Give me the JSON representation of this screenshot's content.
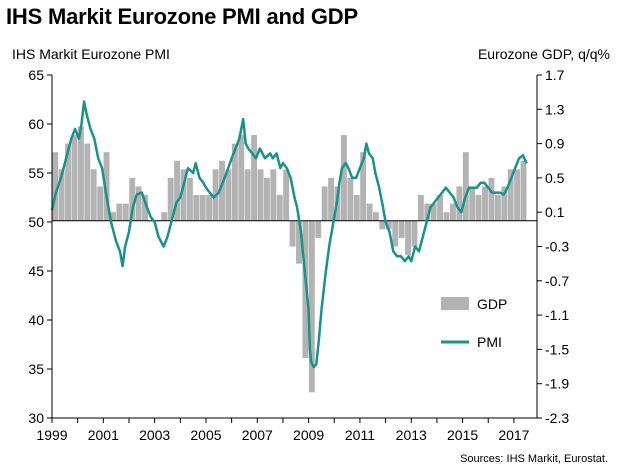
{
  "title": "IHS Markit Eurozone PMI and GDP",
  "source": "Sources: IHS Markit, Eurostat.",
  "colors": {
    "gdp": "#b3b3b3",
    "pmi": "#16948a"
  },
  "chart_data": {
    "type": "bar-line",
    "title": "IHS Markit Eurozone PMI and GDP",
    "left_axis": {
      "label": "IHS Markit Eurozone PMI",
      "ylim": [
        30,
        65
      ],
      "ticks": [
        "30",
        "35",
        "40",
        "45",
        "50",
        "55",
        "60",
        "65"
      ]
    },
    "right_axis": {
      "label": "Eurozone GDP, q/q%",
      "ylim": [
        -2.3,
        1.7
      ],
      "ticks": [
        "-2.3",
        "-1.9",
        "-1.5",
        "-1.1",
        "-0.7",
        "-0.3",
        "0.1",
        "0.5",
        "0.9",
        "1.3",
        "1.7"
      ]
    },
    "x_axis": {
      "range": [
        1999,
        2017.9
      ],
      "ticks": [
        "1999",
        "2001",
        "2003",
        "2005",
        "2007",
        "2009",
        "2011",
        "2013",
        "2015",
        "2017"
      ]
    },
    "legend": {
      "position": "bottom-right",
      "items": [
        "GDP",
        "PMI"
      ]
    },
    "grid": false,
    "series": [
      {
        "name": "GDP",
        "type": "bar",
        "axis": "right",
        "x": [
          1999.0,
          1999.25,
          1999.5,
          1999.75,
          2000.0,
          2000.25,
          2000.5,
          2000.75,
          2001.0,
          2001.25,
          2001.5,
          2001.75,
          2002.0,
          2002.25,
          2002.5,
          2002.75,
          2003.0,
          2003.25,
          2003.5,
          2003.75,
          2004.0,
          2004.25,
          2004.5,
          2004.75,
          2005.0,
          2005.25,
          2005.5,
          2005.75,
          2006.0,
          2006.25,
          2006.5,
          2006.75,
          2007.0,
          2007.25,
          2007.5,
          2007.75,
          2008.0,
          2008.25,
          2008.5,
          2008.75,
          2009.0,
          2009.25,
          2009.5,
          2009.75,
          2010.0,
          2010.25,
          2010.5,
          2010.75,
          2011.0,
          2011.25,
          2011.5,
          2011.75,
          2012.0,
          2012.25,
          2012.5,
          2012.75,
          2013.0,
          2013.25,
          2013.5,
          2013.75,
          2014.0,
          2014.25,
          2014.5,
          2014.75,
          2015.0,
          2015.25,
          2015.5,
          2015.75,
          2016.0,
          2016.25,
          2016.5,
          2016.75,
          2017.0,
          2017.25
        ],
        "values": [
          0.8,
          0.6,
          0.9,
          1.0,
          1.1,
          0.9,
          0.6,
          0.4,
          0.8,
          0.1,
          0.2,
          0.2,
          0.5,
          0.4,
          0.3,
          0.0,
          0.0,
          0.1,
          0.5,
          0.7,
          0.6,
          0.5,
          0.3,
          0.3,
          0.3,
          0.6,
          0.7,
          0.6,
          0.9,
          1.0,
          0.6,
          1.0,
          0.6,
          0.5,
          0.6,
          0.3,
          0.6,
          -0.3,
          -0.5,
          -1.6,
          -2.0,
          -0.2,
          0.4,
          0.5,
          0.4,
          1.0,
          0.5,
          0.3,
          0.8,
          0.2,
          0.1,
          -0.1,
          -0.1,
          -0.3,
          -0.2,
          -0.4,
          -0.3,
          0.3,
          0.2,
          0.2,
          0.3,
          0.1,
          0.2,
          0.4,
          0.8,
          0.4,
          0.3,
          0.4,
          0.5,
          0.3,
          0.4,
          0.6,
          0.6,
          0.7
        ]
      },
      {
        "name": "PMI",
        "type": "line",
        "axis": "left",
        "points": [
          [
            1999.0,
            51.2
          ],
          [
            1999.15,
            53.0
          ],
          [
            1999.35,
            54.5
          ],
          [
            1999.55,
            56.5
          ],
          [
            1999.75,
            58.5
          ],
          [
            1999.9,
            59.5
          ],
          [
            2000.05,
            58.5
          ],
          [
            2000.15,
            60.0
          ],
          [
            2000.25,
            62.3
          ],
          [
            2000.35,
            61.0
          ],
          [
            2000.5,
            59.5
          ],
          [
            2000.65,
            58.5
          ],
          [
            2000.8,
            56.5
          ],
          [
            2000.95,
            55.5
          ],
          [
            2001.1,
            53.0
          ],
          [
            2001.3,
            50.0
          ],
          [
            2001.5,
            48.0
          ],
          [
            2001.65,
            47.0
          ],
          [
            2001.75,
            45.5
          ],
          [
            2001.85,
            47.5
          ],
          [
            2002.0,
            49.0
          ],
          [
            2002.15,
            51.5
          ],
          [
            2002.3,
            52.8
          ],
          [
            2002.5,
            53.0
          ],
          [
            2002.7,
            51.5
          ],
          [
            2002.85,
            50.5
          ],
          [
            2003.0,
            50.0
          ],
          [
            2003.15,
            48.5
          ],
          [
            2003.35,
            47.5
          ],
          [
            2003.5,
            48.5
          ],
          [
            2003.7,
            50.5
          ],
          [
            2003.85,
            52.0
          ],
          [
            2004.0,
            52.5
          ],
          [
            2004.15,
            54.0
          ],
          [
            2004.3,
            55.5
          ],
          [
            2004.5,
            55.0
          ],
          [
            2004.6,
            56.0
          ],
          [
            2004.75,
            54.5
          ],
          [
            2004.9,
            54.0
          ],
          [
            2005.0,
            53.5
          ],
          [
            2005.15,
            53.0
          ],
          [
            2005.3,
            52.5
          ],
          [
            2005.5,
            53.0
          ],
          [
            2005.65,
            54.0
          ],
          [
            2005.8,
            55.0
          ],
          [
            2006.0,
            56.5
          ],
          [
            2006.15,
            57.5
          ],
          [
            2006.3,
            58.5
          ],
          [
            2006.45,
            60.5
          ],
          [
            2006.55,
            58.0
          ],
          [
            2006.65,
            57.5
          ],
          [
            2006.8,
            57.0
          ],
          [
            2006.95,
            56.5
          ],
          [
            2007.1,
            57.5
          ],
          [
            2007.3,
            56.5
          ],
          [
            2007.5,
            57.0
          ],
          [
            2007.6,
            56.5
          ],
          [
            2007.75,
            57.0
          ],
          [
            2007.9,
            55.5
          ],
          [
            2008.0,
            56.0
          ],
          [
            2008.15,
            55.5
          ],
          [
            2008.3,
            54.5
          ],
          [
            2008.45,
            52.5
          ],
          [
            2008.55,
            51.5
          ],
          [
            2008.7,
            49.0
          ],
          [
            2008.85,
            45.0
          ],
          [
            2009.0,
            41.0
          ],
          [
            2009.05,
            37.0
          ],
          [
            2009.1,
            35.7
          ],
          [
            2009.2,
            35.2
          ],
          [
            2009.3,
            35.5
          ],
          [
            2009.4,
            38.0
          ],
          [
            2009.5,
            41.0
          ],
          [
            2009.65,
            44.5
          ],
          [
            2009.8,
            47.5
          ],
          [
            2010.0,
            50.5
          ],
          [
            2010.1,
            52.0
          ],
          [
            2010.2,
            54.0
          ],
          [
            2010.3,
            55.5
          ],
          [
            2010.45,
            56.0
          ],
          [
            2010.55,
            55.5
          ],
          [
            2010.7,
            54.5
          ],
          [
            2010.85,
            54.5
          ],
          [
            2011.0,
            55.5
          ],
          [
            2011.15,
            56.5
          ],
          [
            2011.25,
            58.0
          ],
          [
            2011.35,
            57.0
          ],
          [
            2011.5,
            56.5
          ],
          [
            2011.6,
            55.0
          ],
          [
            2011.75,
            53.5
          ],
          [
            2011.9,
            51.5
          ],
          [
            2012.0,
            50.0
          ],
          [
            2012.15,
            49.0
          ],
          [
            2012.3,
            47.0
          ],
          [
            2012.45,
            46.5
          ],
          [
            2012.6,
            46.5
          ],
          [
            2012.75,
            46.0
          ],
          [
            2012.9,
            46.5
          ],
          [
            2013.0,
            46.0
          ],
          [
            2013.15,
            47.5
          ],
          [
            2013.3,
            47.0
          ],
          [
            2013.45,
            48.5
          ],
          [
            2013.6,
            50.0
          ],
          [
            2013.75,
            51.5
          ],
          [
            2013.9,
            52.0
          ],
          [
            2014.05,
            52.5
          ],
          [
            2014.2,
            53.0
          ],
          [
            2014.35,
            53.5
          ],
          [
            2014.5,
            53.0
          ],
          [
            2014.65,
            52.5
          ],
          [
            2014.8,
            51.5
          ],
          [
            2014.95,
            51.0
          ],
          [
            2015.1,
            52.5
          ],
          [
            2015.25,
            53.5
          ],
          [
            2015.4,
            53.5
          ],
          [
            2015.55,
            53.5
          ],
          [
            2015.7,
            54.0
          ],
          [
            2015.85,
            54.0
          ],
          [
            2016.0,
            53.5
          ],
          [
            2016.15,
            53.0
          ],
          [
            2016.3,
            53.0
          ],
          [
            2016.45,
            53.0
          ],
          [
            2016.6,
            52.8
          ],
          [
            2016.75,
            53.5
          ],
          [
            2016.9,
            54.5
          ],
          [
            2017.05,
            55.5
          ],
          [
            2017.2,
            56.5
          ],
          [
            2017.35,
            56.8
          ],
          [
            2017.5,
            56.0
          ]
        ]
      }
    ]
  }
}
